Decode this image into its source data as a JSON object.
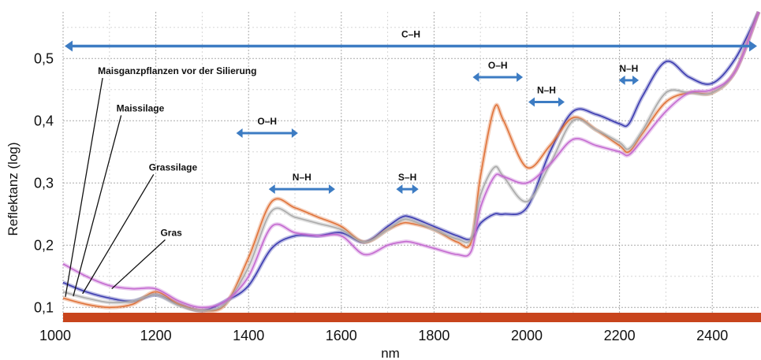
{
  "chart_data": {
    "type": "line",
    "xlabel": "nm",
    "ylabel": "Reflektanz (log)",
    "xlim": [
      1000,
      2500
    ],
    "ylim": [
      0.075,
      0.575
    ],
    "x_ticks": [
      "1000",
      "1200",
      "1400",
      "1600",
      "1800",
      "2000",
      "2200",
      "2400"
    ],
    "y_ticks": [
      "0,1",
      "0,2",
      "0,3",
      "0,4",
      "0,5"
    ],
    "y_tick_values": [
      0.1,
      0.2,
      0.3,
      0.4,
      0.5
    ],
    "grid": true,
    "x": [
      1000,
      1050,
      1100,
      1150,
      1200,
      1250,
      1300,
      1350,
      1400,
      1450,
      1500,
      1550,
      1600,
      1650,
      1700,
      1730,
      1750,
      1800,
      1850,
      1880,
      1900,
      1930,
      1950,
      2000,
      2050,
      2100,
      2150,
      2200,
      2220,
      2250,
      2300,
      2350,
      2400,
      2450,
      2500
    ],
    "series": [
      {
        "color": "#3b3bb0",
        "values": [
          0.14,
          0.125,
          0.115,
          0.11,
          0.12,
          0.105,
          0.095,
          0.11,
          0.135,
          0.195,
          0.215,
          0.215,
          0.22,
          0.205,
          0.23,
          0.245,
          0.245,
          0.23,
          0.215,
          0.21,
          0.235,
          0.25,
          0.25,
          0.26,
          0.35,
          0.415,
          0.41,
          0.395,
          0.395,
          0.44,
          0.495,
          0.47,
          0.46,
          0.5,
          0.575
        ]
      },
      {
        "color": "#e0733a",
        "values": [
          0.115,
          0.105,
          0.1,
          0.105,
          0.125,
          0.105,
          0.095,
          0.105,
          0.18,
          0.27,
          0.26,
          0.245,
          0.23,
          0.205,
          0.225,
          0.235,
          0.235,
          0.225,
          0.205,
          0.205,
          0.31,
          0.42,
          0.4,
          0.325,
          0.36,
          0.405,
          0.385,
          0.36,
          0.35,
          0.38,
          0.43,
          0.445,
          0.445,
          0.48,
          0.575
        ]
      },
      {
        "color": "#aaaaaa",
        "values": [
          0.125,
          0.115,
          0.108,
          0.11,
          0.12,
          0.103,
          0.095,
          0.106,
          0.165,
          0.255,
          0.245,
          0.235,
          0.225,
          0.205,
          0.225,
          0.24,
          0.24,
          0.225,
          0.21,
          0.21,
          0.28,
          0.325,
          0.31,
          0.27,
          0.33,
          0.4,
          0.385,
          0.365,
          0.355,
          0.385,
          0.445,
          0.445,
          0.445,
          0.48,
          0.575
        ]
      },
      {
        "color": "#c46ad0",
        "values": [
          0.17,
          0.15,
          0.135,
          0.13,
          0.13,
          0.11,
          0.1,
          0.11,
          0.15,
          0.23,
          0.22,
          0.215,
          0.215,
          0.185,
          0.2,
          0.205,
          0.205,
          0.195,
          0.185,
          0.19,
          0.26,
          0.31,
          0.31,
          0.3,
          0.33,
          0.37,
          0.36,
          0.35,
          0.345,
          0.37,
          0.415,
          0.445,
          0.45,
          0.48,
          0.575
        ]
      }
    ],
    "bands": [
      {
        "label": "C–H",
        "x1": 1000,
        "x2": 2500,
        "y": 0.52
      },
      {
        "label": "O–H",
        "x1": 1370,
        "x2": 1510,
        "y": 0.38
      },
      {
        "label": "N–H",
        "x1": 1440,
        "x2": 1590,
        "y": 0.29
      },
      {
        "label": "S–H",
        "x1": 1715,
        "x2": 1770,
        "y": 0.29
      },
      {
        "label": "O–H",
        "x1": 1880,
        "x2": 1995,
        "y": 0.47
      },
      {
        "label": "N–H",
        "x1": 2000,
        "x2": 2085,
        "y": 0.43
      },
      {
        "label": "N–H",
        "x1": 2195,
        "x2": 2245,
        "y": 0.465
      }
    ],
    "annotations": [
      {
        "label": "Maisganzpflanzen vor der Silierung",
        "x": 1075,
        "y": 0.475,
        "target_x": 1005,
        "target_y": 0.117
      },
      {
        "label": "Maissilage",
        "x": 1115,
        "y": 0.415,
        "target_x": 1022,
        "target_y": 0.118
      },
      {
        "label": "Grassilage",
        "x": 1185,
        "y": 0.32,
        "target_x": 1042,
        "target_y": 0.122
      },
      {
        "label": "Gras",
        "x": 1210,
        "y": 0.215,
        "target_x": 1105,
        "target_y": 0.13
      }
    ]
  }
}
